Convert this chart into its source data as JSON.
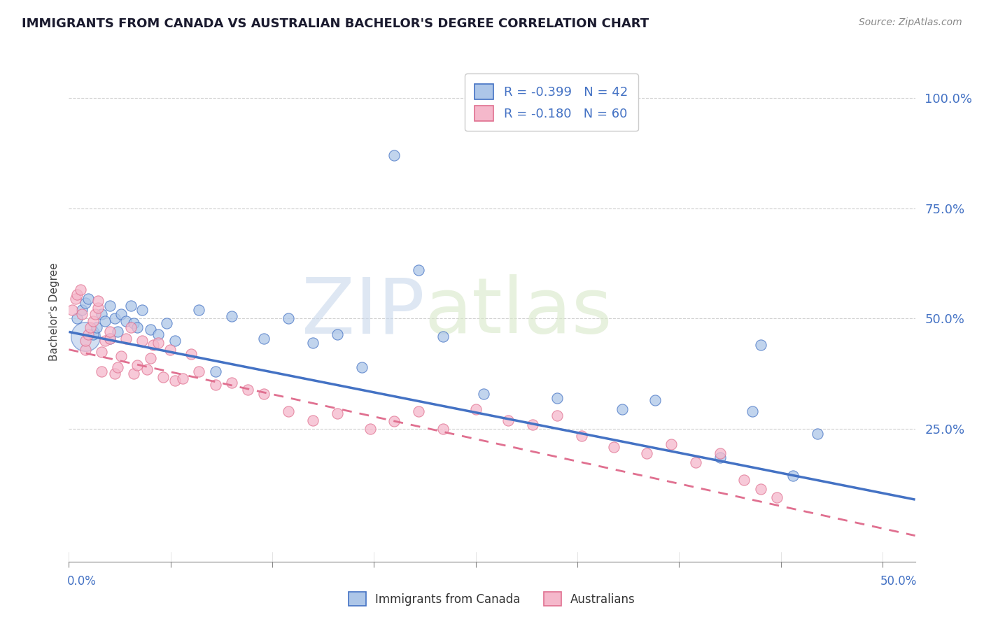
{
  "title": "IMMIGRANTS FROM CANADA VS AUSTRALIAN BACHELOR'S DEGREE CORRELATION CHART",
  "source": "Source: ZipAtlas.com",
  "ylabel": "Bachelor's Degree",
  "ytick_labels": [
    "25.0%",
    "50.0%",
    "75.0%",
    "100.0%"
  ],
  "ytick_values": [
    0.25,
    0.5,
    0.75,
    1.0
  ],
  "xlim": [
    0.0,
    0.52
  ],
  "ylim": [
    -0.05,
    1.08
  ],
  "blue_R": -0.399,
  "blue_N": 42,
  "pink_R": -0.18,
  "pink_N": 60,
  "blue_fill": "#adc6e8",
  "pink_fill": "#f5b8cb",
  "blue_edge": "#4472c4",
  "pink_edge": "#e07090",
  "blue_line": "#4472c4",
  "pink_line": "#e07090",
  "grid_color": "#d0d0d0",
  "watermark_blue": "#c8d8ec",
  "watermark_green": "#d8e8c8",
  "blue_scatter_x": [
    0.005,
    0.008,
    0.01,
    0.012,
    0.015,
    0.017,
    0.02,
    0.022,
    0.025,
    0.025,
    0.028,
    0.03,
    0.032,
    0.035,
    0.038,
    0.04,
    0.042,
    0.045,
    0.05,
    0.055,
    0.06,
    0.065,
    0.08,
    0.09,
    0.1,
    0.12,
    0.135,
    0.15,
    0.165,
    0.18,
    0.2,
    0.215,
    0.23,
    0.255,
    0.3,
    0.34,
    0.36,
    0.4,
    0.42,
    0.425,
    0.445,
    0.46
  ],
  "blue_scatter_y": [
    0.5,
    0.52,
    0.535,
    0.545,
    0.465,
    0.48,
    0.51,
    0.495,
    0.455,
    0.53,
    0.5,
    0.47,
    0.51,
    0.495,
    0.53,
    0.49,
    0.48,
    0.52,
    0.475,
    0.465,
    0.49,
    0.45,
    0.52,
    0.38,
    0.505,
    0.455,
    0.5,
    0.445,
    0.465,
    0.39,
    0.87,
    0.61,
    0.46,
    0.33,
    0.32,
    0.295,
    0.315,
    0.185,
    0.29,
    0.44,
    0.145,
    0.24
  ],
  "blue_large_x": [
    0.01
  ],
  "blue_large_y": [
    0.46
  ],
  "blue_large_size": [
    900
  ],
  "pink_scatter_x": [
    0.002,
    0.004,
    0.005,
    0.007,
    0.008,
    0.01,
    0.01,
    0.012,
    0.013,
    0.015,
    0.016,
    0.018,
    0.018,
    0.02,
    0.02,
    0.022,
    0.025,
    0.025,
    0.028,
    0.03,
    0.032,
    0.035,
    0.038,
    0.04,
    0.042,
    0.045,
    0.048,
    0.05,
    0.052,
    0.055,
    0.058,
    0.062,
    0.065,
    0.07,
    0.075,
    0.08,
    0.09,
    0.1,
    0.11,
    0.12,
    0.135,
    0.15,
    0.165,
    0.185,
    0.2,
    0.215,
    0.23,
    0.25,
    0.27,
    0.285,
    0.3,
    0.315,
    0.335,
    0.355,
    0.37,
    0.385,
    0.4,
    0.415,
    0.425,
    0.435
  ],
  "pink_scatter_y": [
    0.52,
    0.545,
    0.555,
    0.565,
    0.51,
    0.43,
    0.45,
    0.465,
    0.48,
    0.495,
    0.51,
    0.525,
    0.54,
    0.38,
    0.425,
    0.45,
    0.455,
    0.47,
    0.375,
    0.39,
    0.415,
    0.455,
    0.48,
    0.375,
    0.395,
    0.45,
    0.385,
    0.41,
    0.44,
    0.445,
    0.368,
    0.43,
    0.36,
    0.365,
    0.42,
    0.38,
    0.35,
    0.355,
    0.34,
    0.33,
    0.29,
    0.27,
    0.285,
    0.25,
    0.268,
    0.29,
    0.25,
    0.295,
    0.27,
    0.26,
    0.28,
    0.235,
    0.21,
    0.195,
    0.215,
    0.175,
    0.195,
    0.135,
    0.115,
    0.095
  ],
  "blue_line_x0": 0.0,
  "blue_line_y0": 0.47,
  "blue_line_x1": 0.5,
  "blue_line_y1": 0.105,
  "pink_line_x0": 0.0,
  "pink_line_y0": 0.43,
  "pink_line_x1": 0.5,
  "pink_line_y1": 0.025
}
